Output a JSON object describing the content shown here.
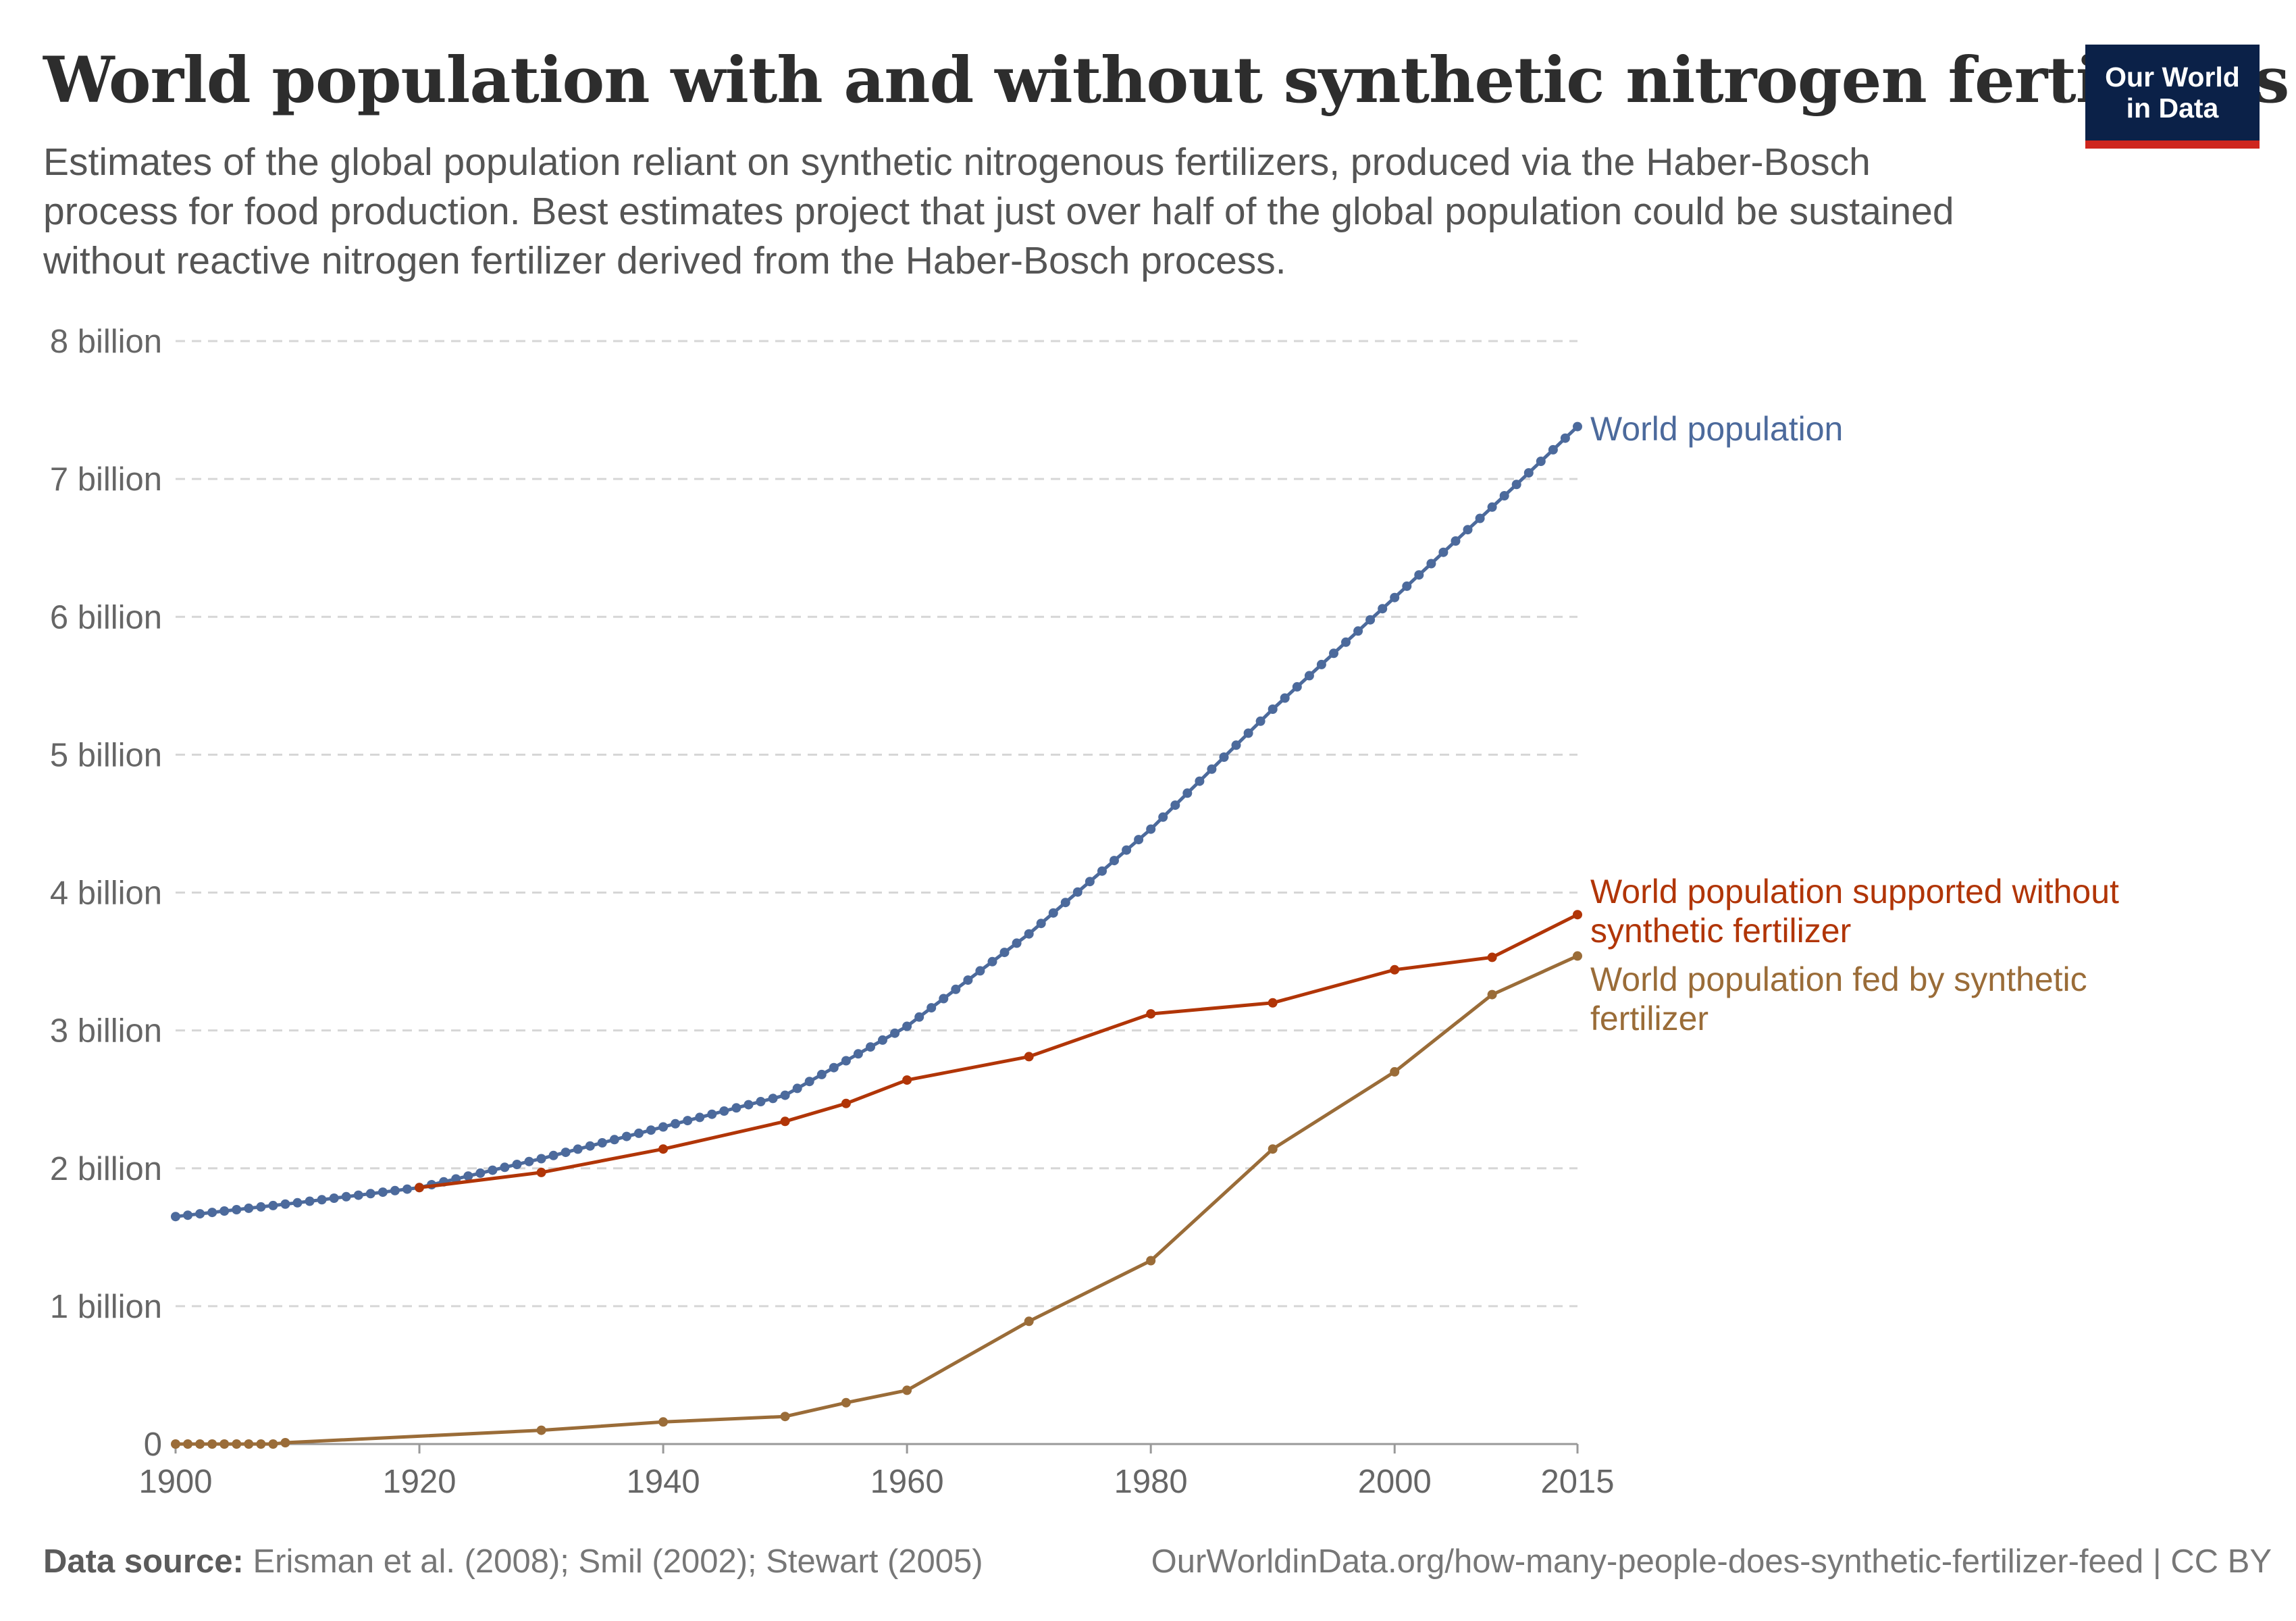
{
  "header": {
    "title": "World population with and without synthetic nitrogen fertilizers",
    "subtitle": "Estimates of the global population reliant on synthetic nitrogenous fertilizers, produced via the Haber-Bosch process for food production. Best estimates project that just over half of the global population could be sustained without reactive nitrogen fertilizer derived from the Haber-Bosch process."
  },
  "logo": {
    "line1": "Our World",
    "line2": "in Data",
    "bg_color": "#0b2148",
    "accent_color": "#ce261e"
  },
  "footer": {
    "source_label": "Data source:",
    "source_text": "Erisman et al. (2008); Smil (2002); Stewart (2005)",
    "url_text": "OurWorldinData.org/how-many-people-does-synthetic-fertilizer-feed | CC BY"
  },
  "chart_data": {
    "type": "line",
    "title": "World population with and without synthetic nitrogen fertilizers",
    "xlabel": "",
    "ylabel": "",
    "xlim": [
      1900,
      2015
    ],
    "ylim": [
      0,
      8000000000
    ],
    "grid": true,
    "x_ticks": [
      {
        "value": 1900,
        "label": "1900"
      },
      {
        "value": 1920,
        "label": "1920"
      },
      {
        "value": 1940,
        "label": "1940"
      },
      {
        "value": 1960,
        "label": "1960"
      },
      {
        "value": 1980,
        "label": "1980"
      },
      {
        "value": 2000,
        "label": "2000"
      },
      {
        "value": 2015,
        "label": "2015"
      }
    ],
    "y_ticks": [
      {
        "value": 0,
        "label": "0"
      },
      {
        "value": 1000000000,
        "label": "1 billion"
      },
      {
        "value": 2000000000,
        "label": "2 billion"
      },
      {
        "value": 3000000000,
        "label": "3 billion"
      },
      {
        "value": 4000000000,
        "label": "4 billion"
      },
      {
        "value": 5000000000,
        "label": "5 billion"
      },
      {
        "value": 6000000000,
        "label": "6 billion"
      },
      {
        "value": 7000000000,
        "label": "7 billion"
      },
      {
        "value": 8000000000,
        "label": "8 billion"
      }
    ],
    "series": [
      {
        "name": "World population",
        "label_lines": [
          "World population"
        ],
        "color": "#4c6a9c",
        "anchors": [
          [
            1900,
            1650000000
          ],
          [
            1910,
            1750000000
          ],
          [
            1920,
            1860000000
          ],
          [
            1930,
            2070000000
          ],
          [
            1940,
            2300000000
          ],
          [
            1950,
            2530000000
          ],
          [
            1960,
            3030000000
          ],
          [
            1970,
            3700000000
          ],
          [
            1980,
            4460000000
          ],
          [
            1990,
            5330000000
          ],
          [
            2000,
            6140000000
          ],
          [
            2010,
            6960000000
          ],
          [
            2015,
            7380000000
          ]
        ]
      },
      {
        "name": "World population supported without synthetic fertilizer",
        "label_lines": [
          "World population supported without",
          "synthetic fertilizer"
        ],
        "color": "#b13507",
        "points": [
          [
            1920,
            1860000000
          ],
          [
            1930,
            1970000000
          ],
          [
            1940,
            2140000000
          ],
          [
            1950,
            2340000000
          ],
          [
            1955,
            2470000000
          ],
          [
            1960,
            2640000000
          ],
          [
            1970,
            2810000000
          ],
          [
            1980,
            3120000000
          ],
          [
            1990,
            3200000000
          ],
          [
            2000,
            3440000000
          ],
          [
            2008,
            3530000000
          ],
          [
            2015,
            3840000000
          ]
        ]
      },
      {
        "name": "World population fed by synthetic fertilizer",
        "label_lines": [
          "World population fed by synthetic",
          "fertilizer"
        ],
        "color": "#9a6c38",
        "points": [
          [
            1900,
            0
          ],
          [
            1901,
            0
          ],
          [
            1902,
            0
          ],
          [
            1903,
            0
          ],
          [
            1904,
            0
          ],
          [
            1905,
            0
          ],
          [
            1906,
            0
          ],
          [
            1907,
            0
          ],
          [
            1908,
            0
          ],
          [
            1909,
            10000000
          ],
          [
            1930,
            100000000
          ],
          [
            1940,
            160000000
          ],
          [
            1950,
            200000000
          ],
          [
            1955,
            300000000
          ],
          [
            1960,
            390000000
          ],
          [
            1970,
            890000000
          ],
          [
            1980,
            1330000000
          ],
          [
            1990,
            2140000000
          ],
          [
            2000,
            2700000000
          ],
          [
            2008,
            3260000000
          ],
          [
            2015,
            3540000000
          ]
        ]
      }
    ]
  }
}
